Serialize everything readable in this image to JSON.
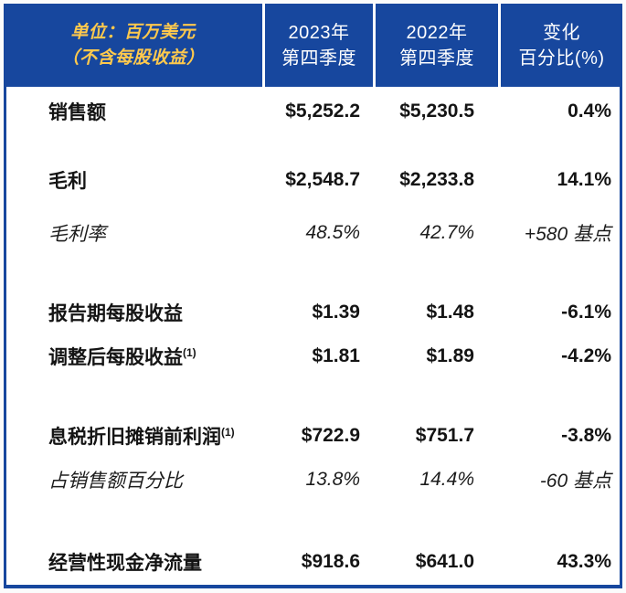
{
  "colors": {
    "header_blue": "#17479E",
    "border_blue": "#17479E",
    "unit_note_text": "#FFC94D",
    "header_text": "#FFFFFF",
    "body_text": "#141414"
  },
  "header": {
    "unit_note": {
      "line1": "单位：百万美元",
      "line2": "（不含每股收益）"
    },
    "col_2023": {
      "line1": "2023年",
      "line2": "第四季度"
    },
    "col_2022": {
      "line1": "2022年",
      "line2": "第四季度"
    },
    "col_change": {
      "line1": "变化",
      "line2": "百分比(%)"
    }
  },
  "rows": [
    {
      "label": "销售额",
      "sup": "",
      "q4_2023": "$5,252.2",
      "q4_2022": "$5,230.5",
      "change": "0.4%"
    },
    {
      "label": "毛利",
      "sup": "",
      "q4_2023": "$2,548.7",
      "q4_2022": "$2,233.8",
      "change": "14.1%"
    },
    {
      "label": "毛利率",
      "sup": "",
      "q4_2023": "48.5%",
      "q4_2022": "42.7%",
      "change": "+580 基点"
    },
    {
      "label": "报告期每股收益",
      "sup": "",
      "q4_2023": "$1.39",
      "q4_2022": "$1.48",
      "change": "-6.1%"
    },
    {
      "label": "调整后每股收益",
      "sup": "(1)",
      "q4_2023": "$1.81",
      "q4_2022": "$1.89",
      "change": "-4.2%"
    },
    {
      "label": "息税折旧摊销前利润",
      "sup": "(1)",
      "q4_2023": "$722.9",
      "q4_2022": "$751.7",
      "change": "-3.8%"
    },
    {
      "label": "占销售额百分比",
      "sup": "",
      "q4_2023": "13.8%",
      "q4_2022": "14.4%",
      "change": "-60 基点"
    },
    {
      "label": "经营性现金净流量",
      "sup": "",
      "q4_2023": "$918.6",
      "q4_2022": "$641.0",
      "change": "43.3%"
    }
  ]
}
